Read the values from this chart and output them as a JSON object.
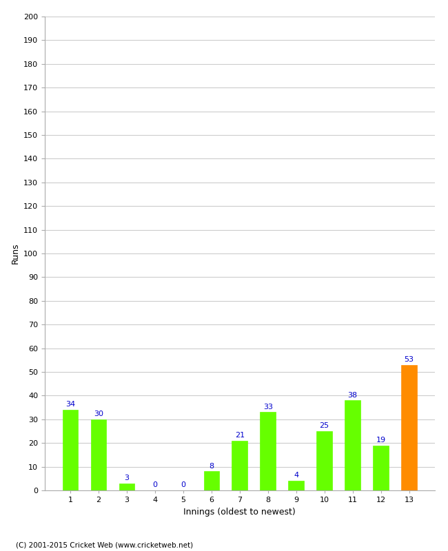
{
  "xlabel": "Innings (oldest to newest)",
  "ylabel": "Runs",
  "categories": [
    1,
    2,
    3,
    4,
    5,
    6,
    7,
    8,
    9,
    10,
    11,
    12,
    13
  ],
  "values": [
    34,
    30,
    3,
    0,
    0,
    8,
    21,
    33,
    4,
    25,
    38,
    19,
    53
  ],
  "bar_colors": [
    "#66ff00",
    "#66ff00",
    "#66ff00",
    "#66ff00",
    "#66ff00",
    "#66ff00",
    "#66ff00",
    "#66ff00",
    "#66ff00",
    "#66ff00",
    "#66ff00",
    "#66ff00",
    "#ff8c00"
  ],
  "ylim": [
    0,
    200
  ],
  "ytick_step": 10,
  "label_color": "#0000cc",
  "label_fontsize": 8,
  "axis_fontsize": 8,
  "ylabel_fontsize": 8,
  "background_color": "#ffffff",
  "grid_color": "#cccccc",
  "footer": "(C) 2001-2015 Cricket Web (www.cricketweb.net)"
}
